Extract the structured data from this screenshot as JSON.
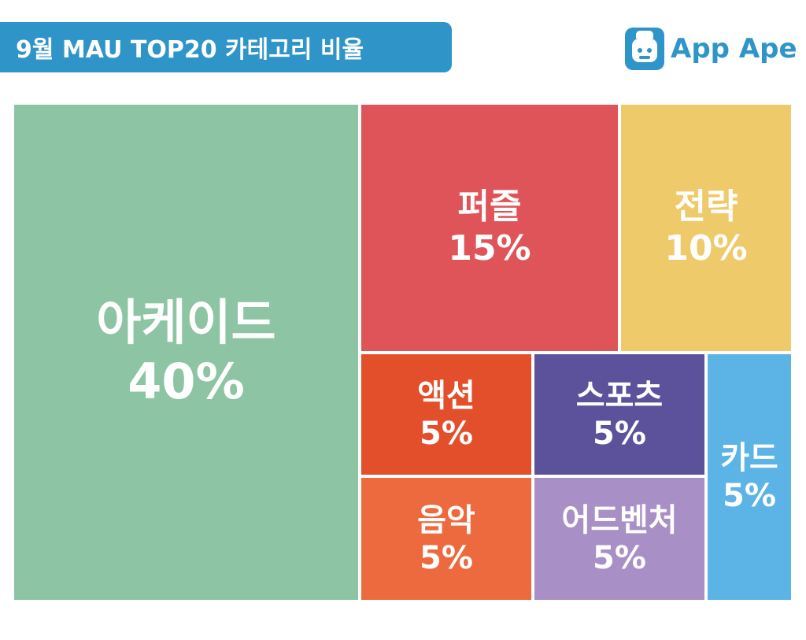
{
  "header": {
    "title": "9월 MAU TOP20 카테고리 비율",
    "brand": "App Ape"
  },
  "colors": {
    "brand": "#2f95c8",
    "arcade": "#8dc4a4",
    "puzzle": "#df5458",
    "strategy": "#eeca6b",
    "action": "#e34f2a",
    "sports": "#5c529c",
    "card": "#5cb3e5",
    "music": "#ec6a3d",
    "adventure": "#a88fc5"
  },
  "chart_data": {
    "type": "treemap",
    "title": "9월 MAU TOP20 카테고리 비율",
    "unit": "%",
    "items": [
      {
        "label": "아케이드",
        "value": 40,
        "value_label": "40%",
        "color": "#8dc4a4"
      },
      {
        "label": "퍼즐",
        "value": 15,
        "value_label": "15%",
        "color": "#df5458"
      },
      {
        "label": "전략",
        "value": 10,
        "value_label": "10%",
        "color": "#eeca6b"
      },
      {
        "label": "액션",
        "value": 5,
        "value_label": "5%",
        "color": "#e34f2a"
      },
      {
        "label": "스포츠",
        "value": 5,
        "value_label": "5%",
        "color": "#5c529c"
      },
      {
        "label": "카드",
        "value": 5,
        "value_label": "5%",
        "color": "#5cb3e5"
      },
      {
        "label": "음악",
        "value": 5,
        "value_label": "5%",
        "color": "#ec6a3d"
      },
      {
        "label": "어드벤처",
        "value": 5,
        "value_label": "5%",
        "color": "#a88fc5"
      }
    ]
  }
}
